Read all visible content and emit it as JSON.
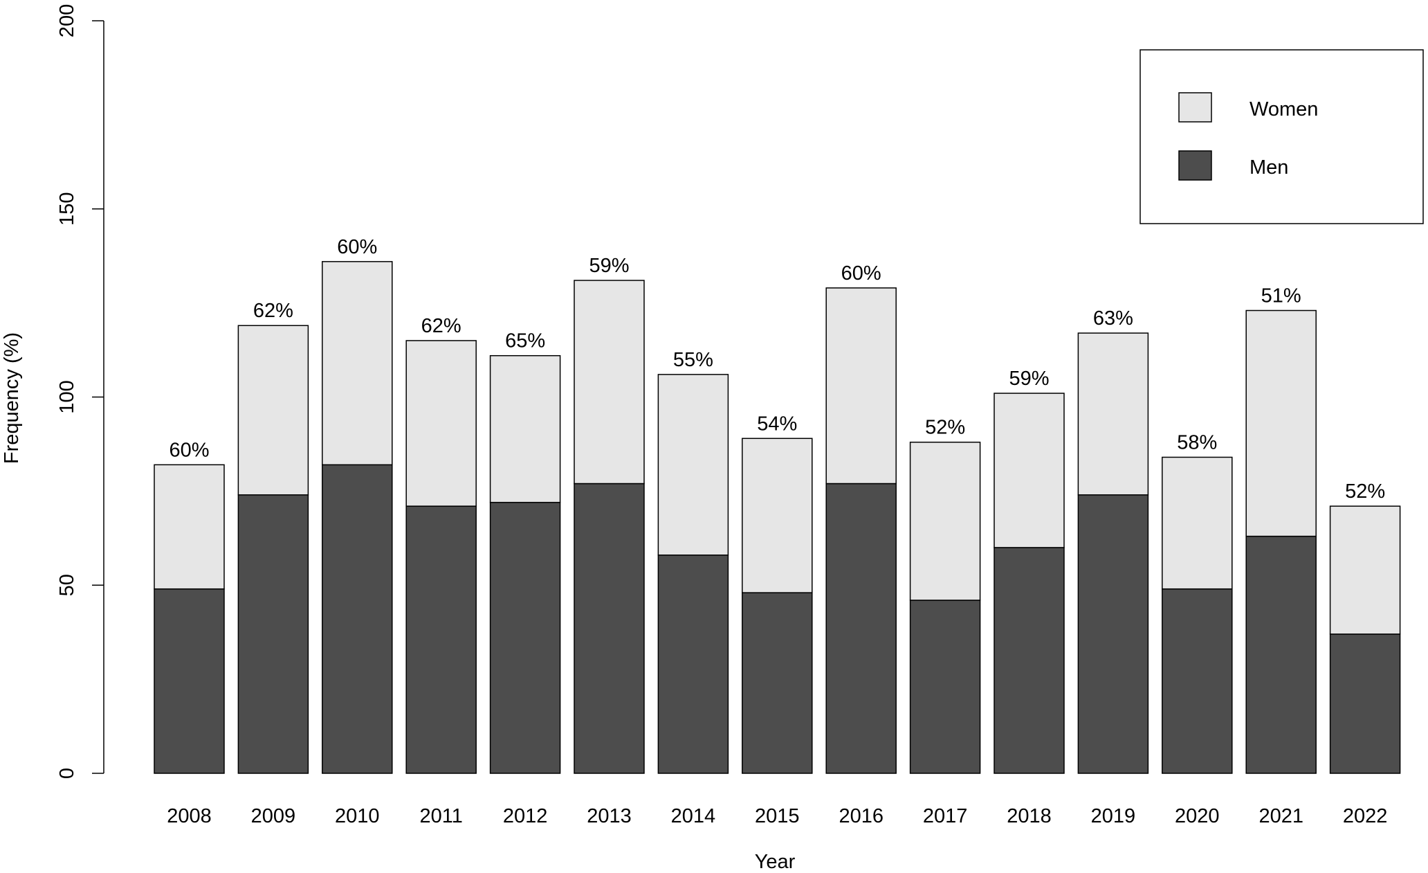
{
  "chart_data": {
    "type": "bar",
    "stacked": true,
    "title": "",
    "xlabel": "Year",
    "ylabel": "Frequency (%)",
    "ylim": [
      0,
      200
    ],
    "yticks": [
      0,
      50,
      100,
      150,
      200
    ],
    "grid": false,
    "legend_position": "top-right",
    "categories": [
      "2008",
      "2009",
      "2010",
      "2011",
      "2012",
      "2013",
      "2014",
      "2015",
      "2016",
      "2017",
      "2018",
      "2019",
      "2020",
      "2021",
      "2022"
    ],
    "series": [
      {
        "name": "Men",
        "color": "#4d4d4d",
        "values": [
          49,
          74,
          82,
          71,
          72,
          77,
          58,
          48,
          77,
          46,
          60,
          74,
          49,
          63,
          37
        ]
      },
      {
        "name": "Women",
        "color": "#e6e6e6",
        "values": [
          33,
          45,
          54,
          44,
          39,
          54,
          48,
          41,
          52,
          42,
          41,
          43,
          35,
          60,
          34
        ]
      }
    ],
    "bar_labels": [
      "60%",
      "62%",
      "60%",
      "62%",
      "65%",
      "59%",
      "55%",
      "54%",
      "60%",
      "52%",
      "59%",
      "63%",
      "58%",
      "51%",
      "52%"
    ],
    "legend": [
      {
        "label": "Women",
        "color": "#e6e6e6"
      },
      {
        "label": "Men",
        "color": "#4d4d4d"
      }
    ]
  }
}
